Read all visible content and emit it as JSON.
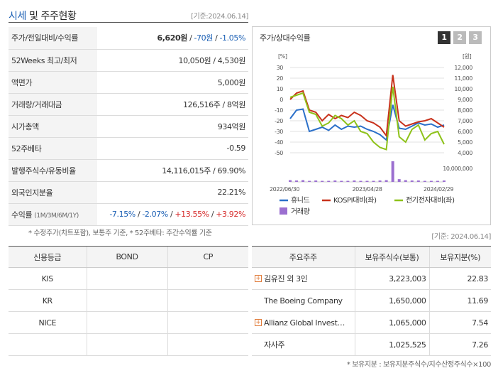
{
  "header": {
    "title_a": "시세",
    "title_b": " 및 주주현황",
    "date": "[기준:2024.06.14]"
  },
  "info": {
    "price_label": "주가/전일대비/수익률",
    "price": "6,620원",
    "change": "-70원",
    "change_pct": "-1.05%",
    "w52_label": "52Weeks 최고/최저",
    "w52": "10,050원 / 4,530원",
    "face_label": "액면가",
    "face": "5,000원",
    "volume_label": "거래량/거래대금",
    "volume": "126,516주 / 8억원",
    "mcap_label": "시가총액",
    "mcap": "934억원",
    "beta_label": "52주베타",
    "beta": "-0.59",
    "shares_label": "발행주식수/유동비율",
    "shares": "14,116,015주 / 69.90%",
    "foreign_label": "외국인지분율",
    "foreign": "22.21%",
    "return_label": "수익률",
    "return_sub": "(1M/3M/6M/1Y)",
    "r1": "-7.15%",
    "r2": "-2.07%",
    "r3": "+13.55%",
    "r4": "+3.92%",
    "sep": " / "
  },
  "footnote1": "* 수정주가(차트포함), 보통주 기준, * 52주베타: 주간수익률 기준",
  "chart_panel": {
    "title": "주가/상대수익률",
    "tabs": [
      "1",
      "2",
      "3"
    ]
  },
  "chart_data": {
    "type": "line",
    "y_left_unit": "[%]",
    "y_right_unit": "[원]",
    "y_left_ticks": [
      "30",
      "20",
      "10",
      "0",
      "-10",
      "-20",
      "-30",
      "-40",
      "-50"
    ],
    "y_right_ticks": [
      "12,000",
      "11,000",
      "10,000",
      "9,000",
      "8,000",
      "7,000",
      "6,000",
      "5,000",
      "4,000"
    ],
    "volume_tick": "10,000,000",
    "x_ticks": [
      "2022/06/30",
      "2023/04/28",
      "2024/02/29"
    ],
    "ylim_left": [
      -50,
      30
    ],
    "series": [
      {
        "name": "휴니드",
        "color": "#2a6fc9",
        "values": [
          -18,
          -10,
          -9,
          -30,
          -28,
          -26,
          -29,
          -24,
          -28,
          -25,
          -26,
          -25,
          -28,
          -30,
          -33,
          -38,
          -5,
          -27,
          -28,
          -25,
          -22,
          -24,
          -23,
          -26,
          -24
        ]
      },
      {
        "name": "KOSPI대비(좌)",
        "color": "#c8321c",
        "values": [
          0,
          6,
          8,
          -10,
          -12,
          -20,
          -14,
          -18,
          -15,
          -17,
          -12,
          -15,
          -20,
          -22,
          -26,
          -34,
          23,
          -20,
          -25,
          -23,
          -21,
          -20,
          -18,
          -22,
          -26
        ]
      },
      {
        "name": "전기전자대비(좌)",
        "color": "#8ec21a",
        "values": [
          2,
          4,
          6,
          -12,
          -14,
          -25,
          -22,
          -15,
          -18,
          -24,
          -20,
          -30,
          -32,
          -40,
          -45,
          -47,
          12,
          -35,
          -40,
          -28,
          -24,
          -38,
          -32,
          -30,
          -42
        ]
      }
    ],
    "volume_label": "거래량",
    "volume_color": "#9b6fd0",
    "volume_values": [
      0.5,
      0.4,
      0.5,
      0.3,
      0.4,
      0.3,
      0.3,
      0.4,
      0.3,
      0.3,
      0.4,
      0.3,
      0.3,
      0.3,
      0.4,
      0.5,
      6.0,
      0.8,
      0.5,
      0.4,
      0.4,
      0.3,
      0.3,
      0.3,
      0.4
    ]
  },
  "date2": "[기준: 2024.06.14]",
  "credit": {
    "headers": [
      "신용등급",
      "BOND",
      "CP"
    ],
    "rows": [
      [
        "KIS",
        "",
        ""
      ],
      [
        "KR",
        "",
        ""
      ],
      [
        "NICE",
        "",
        ""
      ],
      [
        "",
        "",
        ""
      ]
    ]
  },
  "holders": {
    "headers": [
      "주요주주",
      "보유주식수(보통)",
      "보유지분(%)"
    ],
    "rows": [
      {
        "name": "김유진 외 3인",
        "shares": "3,223,003",
        "pct": "22.83"
      },
      {
        "name": "The Boeing Company",
        "shares": "1,650,000",
        "pct": "11.69"
      },
      {
        "name": "Allianz Global Investor…",
        "shares": "1,065,000",
        "pct": "7.54"
      },
      {
        "name": "자사주",
        "shares": "1,025,525",
        "pct": "7.26"
      }
    ]
  },
  "footnote2": "* 보유지분 : 보유지분주식수/지수산정주식수×100"
}
